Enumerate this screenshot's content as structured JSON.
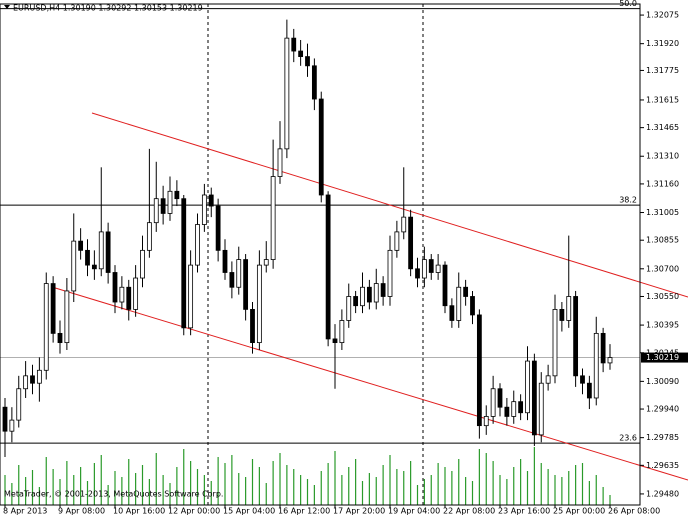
{
  "chart_data": {
    "type": "candlestick",
    "title": "EURUSD,H4  1.30190 1.30292 1.30153 1.30219",
    "footer": "MetaTrader, © 2001-2013, MetaQuotes Software Corp.",
    "categories": [
      "8 Apr 2013",
      null,
      null,
      null,
      null,
      null,
      null,
      null,
      "9 Apr 08:00",
      null,
      null,
      null,
      null,
      null,
      null,
      null,
      "10 Apr 16:00",
      null,
      null,
      null,
      null,
      null,
      null,
      null,
      "12 Apr 00:00",
      null,
      null,
      null,
      null,
      null,
      null,
      null,
      "15 Apr 04:00",
      null,
      null,
      null,
      null,
      null,
      null,
      null,
      "16 Apr 12:00",
      null,
      null,
      null,
      null,
      null,
      null,
      null,
      "17 Apr 20:00",
      null,
      null,
      null,
      null,
      null,
      null,
      null,
      "19 Apr 04:00",
      null,
      null,
      null,
      null,
      null,
      null,
      null,
      "22 Apr 08:00",
      null,
      null,
      null,
      null,
      null,
      null,
      null,
      "23 Apr 16:00",
      null,
      null,
      null,
      null,
      null,
      null,
      null,
      "25 Apr 00:00",
      null,
      null,
      null,
      null,
      null,
      null,
      null,
      "26 Apr 08:00"
    ],
    "open": [
      1.2995,
      1.2982,
      1.2988,
      1.3005,
      1.3012,
      1.3008,
      1.3015,
      1.3062,
      1.3035,
      1.303,
      1.3058,
      1.3085,
      1.308,
      1.3072,
      1.307,
      1.309,
      1.3068,
      1.3052,
      1.306,
      1.3048,
      1.3065,
      1.308,
      1.3095,
      1.3108,
      1.31,
      1.3112,
      1.3108,
      1.3038,
      1.3072,
      1.3094,
      1.311,
      1.3104,
      1.308,
      1.3068,
      1.306,
      1.3075,
      1.3048,
      1.303,
      1.3072,
      1.3075,
      1.312,
      1.3135,
      1.3195,
      1.3188,
      1.3185,
      1.318,
      1.3162,
      1.311,
      1.3032,
      1.303,
      1.3042,
      1.3055,
      1.305,
      1.306,
      1.3052,
      1.3062,
      1.3055,
      1.308,
      1.309,
      1.3098,
      1.307,
      1.3065,
      1.3075,
      1.3068,
      1.3072,
      1.305,
      1.3042,
      1.306,
      1.3055,
      1.3045,
      1.2985,
      1.299,
      1.3005,
      1.2995,
      1.299,
      1.2998,
      1.2992,
      1.302,
      1.298,
      1.3008,
      1.3012,
      1.3048,
      1.3042,
      1.3055,
      1.3012,
      1.3008,
      1.3,
      1.3035,
      1.3019
    ],
    "high": [
      1.3,
      1.2995,
      1.3012,
      1.302,
      1.3018,
      1.3022,
      1.3068,
      1.3066,
      1.3042,
      1.3065,
      1.31,
      1.3092,
      1.3086,
      1.308,
      1.3125,
      1.3095,
      1.3072,
      1.3066,
      1.3064,
      1.3072,
      1.3088,
      1.3135,
      1.3128,
      1.3115,
      1.312,
      1.3118,
      1.311,
      1.308,
      1.31,
      1.3116,
      1.3114,
      1.3108,
      1.3086,
      1.3074,
      1.3082,
      1.3078,
      1.3052,
      1.308,
      1.3085,
      1.314,
      1.315,
      1.3205,
      1.32,
      1.3194,
      1.3192,
      1.3184,
      1.3166,
      1.3112,
      1.304,
      1.3048,
      1.3062,
      1.3058,
      1.3068,
      1.3064,
      1.307,
      1.3066,
      1.3088,
      1.3096,
      1.3125,
      1.3102,
      1.3076,
      1.3082,
      1.3078,
      1.3078,
      1.3074,
      1.3054,
      1.3068,
      1.3064,
      1.3058,
      1.3048,
      1.2996,
      1.3012,
      1.3008,
      1.3,
      1.3004,
      1.3002,
      1.3028,
      1.3024,
      1.3014,
      1.3018,
      1.3056,
      1.3052,
      1.3088,
      1.3058,
      1.3016,
      1.3012,
      1.3044,
      1.3038,
      1.30292
    ],
    "low": [
      1.2968,
      1.2976,
      1.2984,
      1.3,
      1.3002,
      1.2998,
      1.301,
      1.303,
      1.3024,
      1.3026,
      1.3052,
      1.3075,
      1.3066,
      1.3064,
      1.3066,
      1.3062,
      1.3046,
      1.3048,
      1.3042,
      1.3044,
      1.306,
      1.3076,
      1.309,
      1.3094,
      1.3096,
      1.3104,
      1.3034,
      1.3034,
      1.3068,
      1.309,
      1.3098,
      1.3074,
      1.3064,
      1.3054,
      1.3056,
      1.3042,
      1.3024,
      1.3026,
      1.3068,
      1.307,
      1.3116,
      1.313,
      1.3182,
      1.318,
      1.3174,
      1.3156,
      1.3106,
      1.3028,
      1.3005,
      1.3026,
      1.3038,
      1.3046,
      1.3046,
      1.3048,
      1.3048,
      1.305,
      1.305,
      1.3076,
      1.3086,
      1.3066,
      1.306,
      1.306,
      1.3064,
      1.3064,
      1.3046,
      1.3038,
      1.3038,
      1.305,
      1.304,
      1.2978,
      1.298,
      1.2986,
      1.299,
      1.2985,
      1.2986,
      1.2988,
      1.2988,
      1.2974,
      1.2976,
      1.3004,
      1.3008,
      1.3036,
      1.3038,
      1.3006,
      1.3002,
      1.2994,
      1.2996,
      1.3014,
      1.30153
    ],
    "close": [
      1.2982,
      1.2988,
      1.3005,
      1.3012,
      1.3008,
      1.3015,
      1.3062,
      1.3035,
      1.303,
      1.3058,
      1.3085,
      1.308,
      1.3072,
      1.307,
      1.309,
      1.3068,
      1.3052,
      1.306,
      1.3048,
      1.3065,
      1.308,
      1.3095,
      1.3108,
      1.31,
      1.3112,
      1.3108,
      1.3038,
      1.3072,
      1.3094,
      1.311,
      1.3104,
      1.308,
      1.3068,
      1.306,
      1.3075,
      1.3048,
      1.303,
      1.3072,
      1.3075,
      1.312,
      1.3135,
      1.3195,
      1.3188,
      1.3185,
      1.318,
      1.3162,
      1.311,
      1.3032,
      1.303,
      1.3042,
      1.3055,
      1.305,
      1.306,
      1.3052,
      1.3062,
      1.3055,
      1.308,
      1.309,
      1.3098,
      1.307,
      1.3065,
      1.3075,
      1.3068,
      1.3072,
      1.305,
      1.3042,
      1.306,
      1.3055,
      1.3045,
      1.2985,
      1.299,
      1.3005,
      1.2995,
      1.299,
      1.2998,
      1.2992,
      1.302,
      1.298,
      1.3008,
      1.3012,
      1.3048,
      1.3042,
      1.3055,
      1.3012,
      1.3008,
      1.3,
      1.3035,
      1.3019,
      1.30219
    ],
    "volume": [
      30,
      22,
      40,
      28,
      35,
      18,
      48,
      36,
      26,
      44,
      30,
      38,
      24,
      42,
      50,
      20,
      34,
      28,
      46,
      32,
      40,
      26,
      52,
      30,
      22,
      38,
      56,
      44,
      36,
      30,
      24,
      48,
      42,
      50,
      32,
      28,
      46,
      38,
      22,
      44,
      52,
      40,
      36,
      30,
      26,
      20,
      34,
      42,
      54,
      30,
      38,
      46,
      24,
      32,
      28,
      40,
      50,
      36,
      34,
      44,
      20,
      26,
      30,
      42,
      38,
      34,
      46,
      28,
      24,
      56,
      52,
      44,
      30,
      26,
      38,
      46,
      34,
      58,
      42,
      36,
      30,
      28,
      34,
      40,
      42,
      24,
      30,
      18,
      10
    ],
    "ylim": [
      1.2942,
      1.32135
    ],
    "yticks": [
      1.32075,
      {
        "value": 1.3192,
        "label": "1.31920"
      },
      1.31775,
      1.31615,
      1.31465,
      {
        "value": 1.3131,
        "label": "1.31310"
      },
      {
        "value": 1.3116,
        "label": "1.31160"
      },
      1.31005,
      1.30855,
      {
        "value": 1.307,
        "label": "1.30700"
      },
      {
        "value": 1.3055,
        "label": "1.30550"
      },
      1.30395,
      1.30245,
      {
        "value": 1.3009,
        "label": "1.30090"
      },
      {
        "value": 1.2994,
        "label": "1.29940"
      },
      1.29785,
      1.29635,
      {
        "value": 1.2948,
        "label": "1.29480"
      }
    ],
    "levels": [
      {
        "label": "50.0",
        "price": 1.3211
      },
      {
        "label": "38.2",
        "price": 1.31045
      },
      {
        "label": "23.6",
        "price": 1.29755
      }
    ],
    "bull_color": "#ffffff",
    "bear_color": "#000000",
    "volume_color": "#2a9a2a"
  }
}
